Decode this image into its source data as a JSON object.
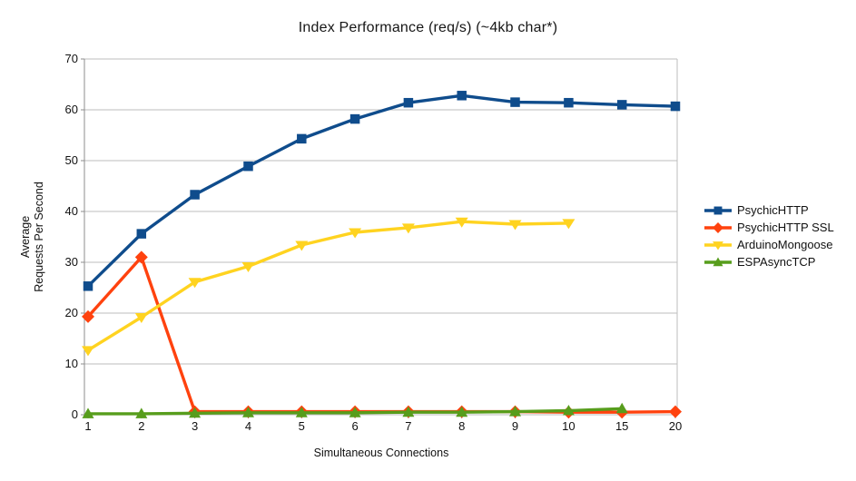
{
  "chart_data": {
    "type": "line",
    "title": "Index Performance (req/s) (~4kb char*)",
    "xlabel": "Simultaneous Connections",
    "ylabel_lines": [
      "Average",
      "Requests Per Second"
    ],
    "categories": [
      "1",
      "2",
      "3",
      "4",
      "5",
      "6",
      "7",
      "8",
      "9",
      "10",
      "15",
      "20"
    ],
    "ylim": [
      0,
      70
    ],
    "yticks": [
      0,
      10,
      20,
      30,
      40,
      50,
      60,
      70
    ],
    "grid": "horizontal-only",
    "legend_position": "right",
    "series": [
      {
        "name": "PsychicHTTP",
        "color": "#0f4c8c",
        "marker": "square",
        "values": [
          25.3,
          35.6,
          43.3,
          48.9,
          54.3,
          58.2,
          61.4,
          62.8,
          61.5,
          61.4,
          61.0,
          60.7
        ]
      },
      {
        "name": "PsychicHTTP SSL",
        "color": "#ff420e",
        "marker": "diamond",
        "values": [
          19.3,
          31.0,
          0.6,
          0.6,
          0.6,
          0.6,
          0.6,
          0.6,
          0.6,
          0.5,
          0.5,
          0.6
        ]
      },
      {
        "name": "ArduinoMongoose",
        "color": "#ffd320",
        "marker": "triangle-down",
        "values": [
          12.7,
          19.2,
          26.1,
          29.2,
          33.4,
          35.9,
          36.8,
          38.0,
          37.5,
          37.7,
          null,
          null
        ]
      },
      {
        "name": "ESPAsyncTCP",
        "color": "#579d1c",
        "marker": "triangle-up",
        "values": [
          0.2,
          0.2,
          0.3,
          0.4,
          0.4,
          0.4,
          0.5,
          0.5,
          0.6,
          0.8,
          1.2,
          null
        ]
      }
    ],
    "colors": {
      "background": "#ffffff",
      "gridline": "#bdbdbd",
      "axis": "#8e8e8e",
      "text": "#111111"
    }
  }
}
